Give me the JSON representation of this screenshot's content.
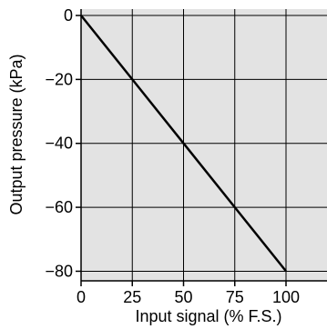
{
  "chart_data": {
    "type": "line",
    "title": "",
    "xlabel": "Input signal (% F.S.)",
    "ylabel": "Output pressure (kPa)",
    "x_ticks": [
      "0",
      "25",
      "50",
      "75",
      "100"
    ],
    "y_ticks": [
      "0",
      "−20",
      "−40",
      "−60",
      "−80"
    ],
    "x_tick_values": [
      0,
      25,
      50,
      75,
      100
    ],
    "y_tick_values": [
      0,
      -20,
      -40,
      -60,
      -80
    ],
    "xlim": [
      0,
      120
    ],
    "ylim": [
      -83,
      2
    ],
    "grid": true,
    "series": [
      {
        "x": [
          0,
          25,
          50,
          75,
          100
        ],
        "y": [
          0,
          -20,
          -40,
          -60,
          -80
        ]
      }
    ],
    "colors": {
      "plot_background": "#e3e3e3",
      "line": "#000000",
      "grid": "#000000"
    }
  }
}
